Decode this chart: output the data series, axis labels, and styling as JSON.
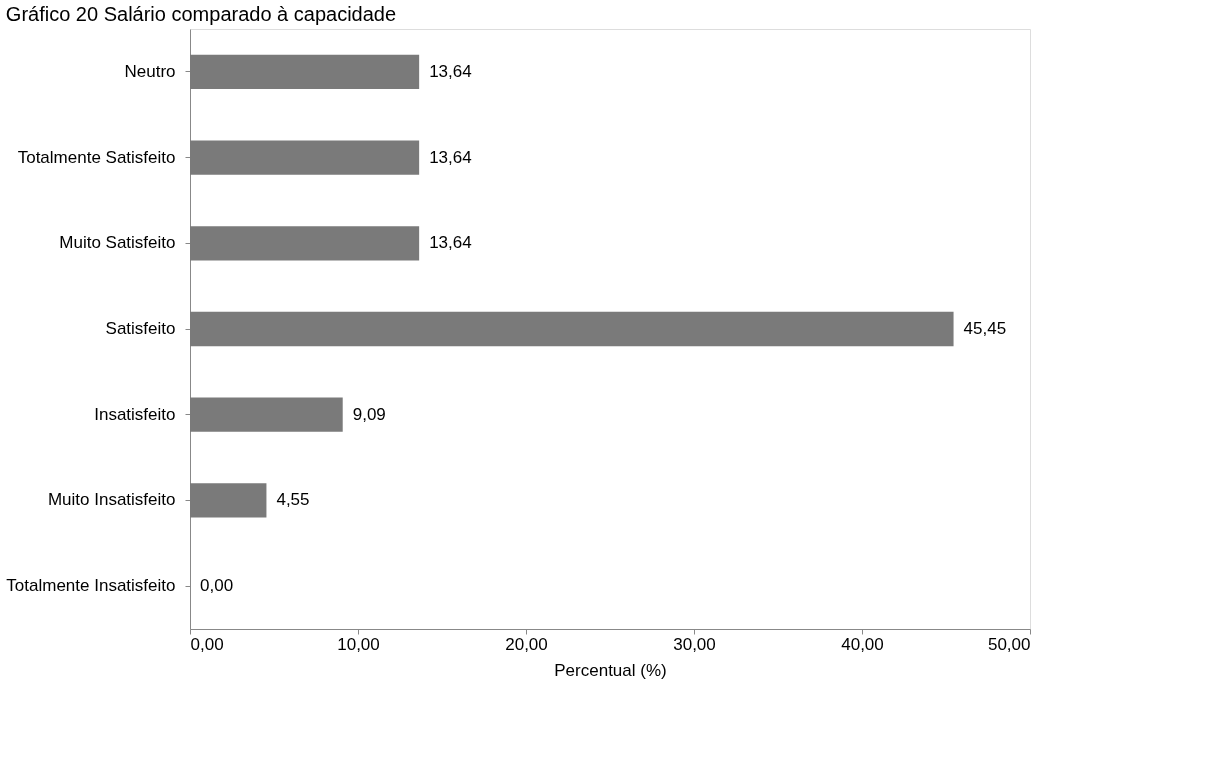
{
  "chart_data": {
    "type": "bar",
    "orientation": "horizontal",
    "title": "Gráfico 20 Salário comparado à capacidade",
    "xlabel": "Percentual (%)",
    "categories": [
      "Neutro",
      "Totalmente Satisfeito",
      "Muito Satisfeito",
      "Satisfeito",
      "Insatisfeito",
      "Muito Insatisfeito",
      "Totalmente Insatisfeito"
    ],
    "values": [
      13.64,
      13.64,
      13.64,
      45.45,
      9.09,
      4.55,
      0.0
    ],
    "value_labels": [
      "13,64",
      "13,64",
      "13,64",
      "45,45",
      "9,09",
      "4,55",
      "0,00"
    ],
    "color": "#7a7a7a",
    "xlim": [
      0,
      50
    ],
    "xticks": [
      {
        "value": 0,
        "label": "0,00"
      },
      {
        "value": 10,
        "label": "10,00"
      },
      {
        "value": 20,
        "label": "20,00"
      },
      {
        "value": 30,
        "label": "30,00"
      },
      {
        "value": 40,
        "label": "40,00"
      },
      {
        "value": 50,
        "label": "50,00"
      }
    ],
    "grid": false
  }
}
